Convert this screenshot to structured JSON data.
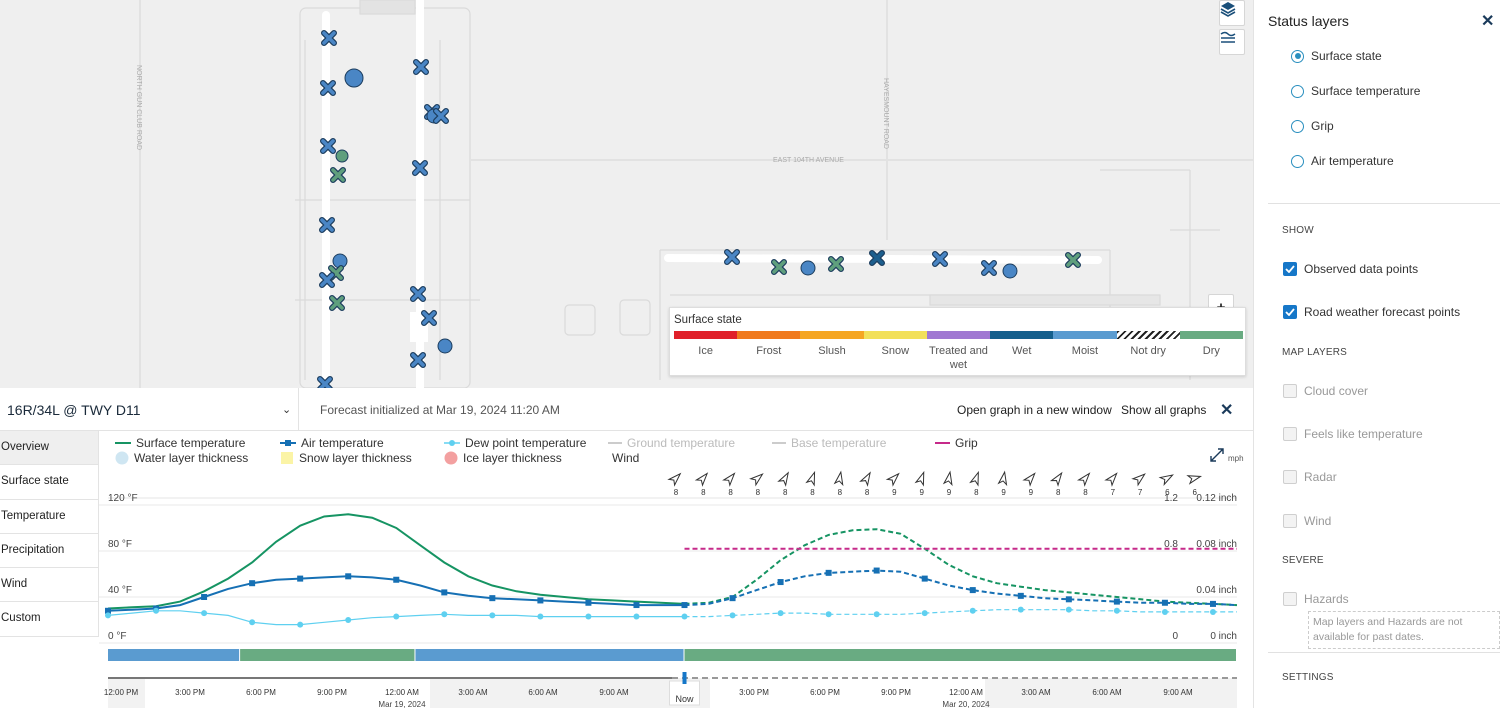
{
  "map": {
    "road_labels": [
      "NORTH GUN CLUB ROAD",
      "HAYESMOUNT ROAD",
      "EAST 104TH AVENUE"
    ],
    "buttons": {
      "layers_icon": "layers-icon",
      "graph_icon": "graph-lines-icon",
      "zoom_in_label": "+"
    },
    "legend": {
      "title": "Surface state",
      "items": [
        {
          "label": "Ice",
          "color": "#e0202a"
        },
        {
          "label": "Frost",
          "color": "#f07a1e"
        },
        {
          "label": "Slush",
          "color": "#f5a623"
        },
        {
          "label": "Snow",
          "color": "#f2e05a"
        },
        {
          "label": "Treated and wet",
          "color": "#a078d2"
        },
        {
          "label": "Wet",
          "color": "#155f8c"
        },
        {
          "label": "Moist",
          "color": "#5a9bd0"
        },
        {
          "label": "Not dry",
          "color": "hatched"
        },
        {
          "label": "Dry",
          "color": "#69ab82"
        }
      ]
    }
  },
  "panel": {
    "title": "Status layers",
    "radios": [
      {
        "label": "Surface state",
        "selected": true
      },
      {
        "label": "Surface temperature",
        "selected": false
      },
      {
        "label": "Grip",
        "selected": false
      },
      {
        "label": "Air temperature",
        "selected": false
      }
    ],
    "show_header": "SHOW",
    "show_items": [
      {
        "label": "Observed data points",
        "checked": true
      },
      {
        "label": "Road weather forecast points",
        "checked": true
      }
    ],
    "map_layers_header": "MAP LAYERS",
    "map_layers": [
      {
        "label": "Cloud cover"
      },
      {
        "label": "Feels like temperature"
      },
      {
        "label": "Radar"
      },
      {
        "label": "Wind"
      }
    ],
    "severe_header": "SEVERE",
    "severe_items": [
      {
        "label": "Hazards"
      }
    ],
    "note": "Map layers and Hazards are not available for past dates.",
    "settings_header": "SETTINGS"
  },
  "bottom": {
    "location": "16R/34L @ TWY D11",
    "forecast_init": "Forecast initialized at Mar 19, 2024 11:20 AM",
    "open_graph": "Open graph in a new window",
    "show_all": "Show all graphs",
    "tabs": [
      "Overview",
      "Surface state",
      "Temperature",
      "Precipitation",
      "Wind",
      "Custom"
    ],
    "active_tab": "Overview",
    "legend": {
      "surface_temp": "Surface temperature",
      "air_temp": "Air temperature",
      "dew_point": "Dew point temperature",
      "ground_temp": "Ground temperature",
      "base_temp": "Base temperature",
      "grip": "Grip",
      "water_layer": "Water layer thickness",
      "snow_layer": "Snow layer thickness",
      "ice_layer": "Ice layer thickness",
      "wind": "Wind",
      "wind_unit": "mph"
    },
    "now_label": "Now"
  },
  "chart_data": {
    "type": "line",
    "x_label_times": [
      "12:00 PM",
      "3:00 PM",
      "6:00 PM",
      "9:00 PM",
      "12:00 AM",
      "3:00 AM",
      "6:00 AM",
      "9:00 AM",
      "PM",
      "3:00 PM",
      "6:00 PM",
      "9:00 PM",
      "12:00 AM",
      "3:00 AM",
      "6:00 AM",
      "9:00 AM"
    ],
    "x_dates": [
      "Mar 19, 2024",
      "Mar 20, 2024"
    ],
    "y_left_ticks": [
      "120 °F",
      "80 °F",
      "40 °F",
      "0 °F"
    ],
    "y_right_grip_ticks": [
      "1.2",
      "0.8",
      "0"
    ],
    "y_right_thickness_ticks": [
      "0.12 inch",
      "0.08 inch",
      "0.04 inch",
      "0 inch"
    ],
    "ylim": [
      0,
      120
    ],
    "now_hour": 24,
    "x_range_hours": [
      0,
      47
    ],
    "series": [
      {
        "name": "Surface temperature",
        "color": "#169463",
        "observed": [
          [
            0,
            30
          ],
          [
            1,
            31
          ],
          [
            2,
            32
          ],
          [
            3,
            36
          ],
          [
            4,
            45
          ],
          [
            5,
            56
          ],
          [
            6,
            70
          ],
          [
            7,
            88
          ],
          [
            8,
            102
          ],
          [
            9,
            110
          ],
          [
            10,
            112
          ],
          [
            11,
            109
          ],
          [
            12,
            100
          ],
          [
            13,
            85
          ],
          [
            14,
            70
          ],
          [
            15,
            58
          ],
          [
            16,
            50
          ],
          [
            17,
            45
          ],
          [
            18,
            42
          ],
          [
            19,
            40
          ],
          [
            20,
            38
          ],
          [
            21,
            37
          ],
          [
            22,
            36
          ],
          [
            23,
            35
          ],
          [
            24,
            34
          ]
        ],
        "forecast": [
          [
            24,
            34
          ],
          [
            25,
            35
          ],
          [
            26,
            40
          ],
          [
            27,
            55
          ],
          [
            28,
            72
          ],
          [
            29,
            85
          ],
          [
            30,
            94
          ],
          [
            31,
            98
          ],
          [
            32,
            99
          ],
          [
            33,
            95
          ],
          [
            34,
            82
          ],
          [
            35,
            68
          ],
          [
            36,
            58
          ],
          [
            37,
            52
          ],
          [
            38,
            49
          ],
          [
            39,
            46
          ],
          [
            40,
            44
          ],
          [
            41,
            42
          ],
          [
            42,
            40
          ],
          [
            43,
            38
          ],
          [
            44,
            36
          ],
          [
            45,
            35
          ],
          [
            46,
            34
          ],
          [
            47,
            33
          ]
        ]
      },
      {
        "name": "Air temperature",
        "color": "#1670b4",
        "observed": [
          [
            0,
            28
          ],
          [
            1,
            29
          ],
          [
            2,
            30
          ],
          [
            3,
            33
          ],
          [
            4,
            40
          ],
          [
            5,
            47
          ],
          [
            6,
            52
          ],
          [
            7,
            55
          ],
          [
            8,
            56
          ],
          [
            9,
            57
          ],
          [
            10,
            58
          ],
          [
            11,
            57
          ],
          [
            12,
            55
          ],
          [
            13,
            50
          ],
          [
            14,
            44
          ],
          [
            15,
            41
          ],
          [
            16,
            39
          ],
          [
            17,
            38
          ],
          [
            18,
            37
          ],
          [
            19,
            36
          ],
          [
            20,
            35
          ],
          [
            21,
            34
          ],
          [
            22,
            33
          ],
          [
            23,
            33
          ],
          [
            24,
            33
          ]
        ],
        "forecast": [
          [
            24,
            33
          ],
          [
            25,
            34
          ],
          [
            26,
            39
          ],
          [
            27,
            46
          ],
          [
            28,
            53
          ],
          [
            29,
            58
          ],
          [
            30,
            61
          ],
          [
            31,
            62
          ],
          [
            32,
            63
          ],
          [
            33,
            62
          ],
          [
            34,
            56
          ],
          [
            35,
            50
          ],
          [
            36,
            46
          ],
          [
            37,
            43
          ],
          [
            38,
            41
          ],
          [
            39,
            39
          ],
          [
            40,
            38
          ],
          [
            41,
            37
          ],
          [
            42,
            36
          ],
          [
            43,
            35
          ],
          [
            44,
            35
          ],
          [
            45,
            34
          ],
          [
            46,
            34
          ],
          [
            47,
            33
          ]
        ]
      },
      {
        "name": "Dew point temperature",
        "color": "#5fd0f0",
        "observed": [
          [
            0,
            24
          ],
          [
            1,
            26
          ],
          [
            2,
            28
          ],
          [
            3,
            28
          ],
          [
            4,
            26
          ],
          [
            5,
            24
          ],
          [
            6,
            18
          ],
          [
            7,
            16
          ],
          [
            8,
            16
          ],
          [
            9,
            18
          ],
          [
            10,
            20
          ],
          [
            11,
            22
          ],
          [
            12,
            23
          ],
          [
            13,
            24
          ],
          [
            14,
            25
          ],
          [
            15,
            24
          ],
          [
            16,
            24
          ],
          [
            17,
            24
          ],
          [
            18,
            23
          ],
          [
            19,
            23
          ],
          [
            20,
            23
          ],
          [
            21,
            23
          ],
          [
            22,
            23
          ],
          [
            23,
            23
          ],
          [
            24,
            23
          ]
        ],
        "forecast": [
          [
            24,
            23
          ],
          [
            25,
            23
          ],
          [
            26,
            24
          ],
          [
            27,
            25
          ],
          [
            28,
            26
          ],
          [
            29,
            26
          ],
          [
            30,
            25
          ],
          [
            31,
            25
          ],
          [
            32,
            25
          ],
          [
            33,
            25
          ],
          [
            34,
            26
          ],
          [
            35,
            27
          ],
          [
            36,
            28
          ],
          [
            37,
            29
          ],
          [
            38,
            29
          ],
          [
            39,
            29
          ],
          [
            40,
            29
          ],
          [
            41,
            28
          ],
          [
            42,
            28
          ],
          [
            43,
            27
          ],
          [
            44,
            27
          ],
          [
            45,
            27
          ],
          [
            46,
            27
          ],
          [
            47,
            27
          ]
        ]
      },
      {
        "name": "Grip",
        "color": "#c62a8a",
        "axis": "grip",
        "forecast": [
          [
            24,
            0.82
          ],
          [
            47,
            0.82
          ]
        ]
      }
    ],
    "wind_speeds_mph": [
      8,
      8,
      8,
      8,
      8,
      8,
      8,
      8,
      9,
      9,
      9,
      8,
      9,
      9,
      8,
      8,
      7,
      7,
      6,
      6
    ],
    "surface_state_bar": [
      {
        "from": 0,
        "to": 5.5,
        "state": "Moist",
        "color": "#5a9bd0"
      },
      {
        "from": 5.5,
        "to": 12.8,
        "state": "Dry",
        "color": "#69ab82"
      },
      {
        "from": 12.8,
        "to": 24,
        "state": "Moist",
        "color": "#5a9bd0"
      },
      {
        "from": 24,
        "to": 47,
        "state": "Dry",
        "color": "#69ab82"
      }
    ]
  }
}
